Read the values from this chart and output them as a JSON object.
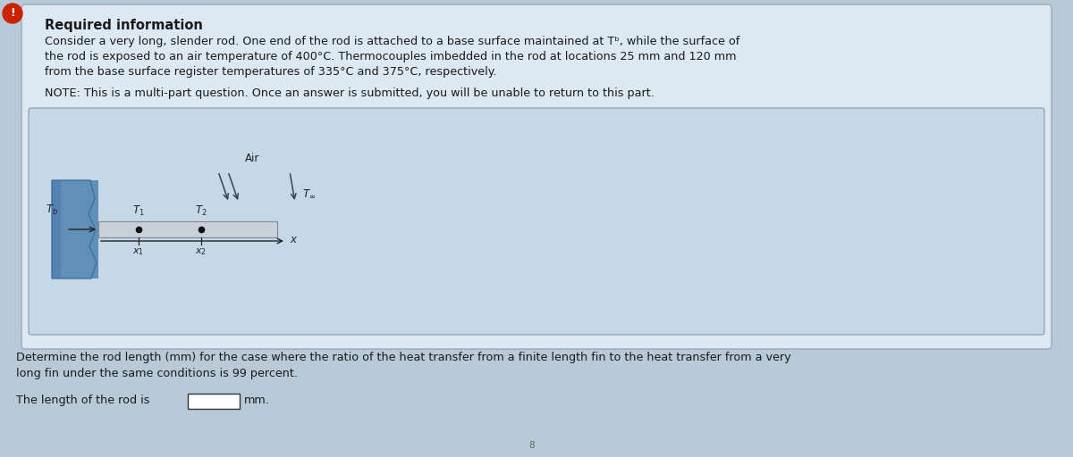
{
  "bg_color": "#b8cad8",
  "panel_facecolor": "#dce8f2",
  "panel_edgecolor": "#9aaabb",
  "diag_bg_color": "#c5d8e8",
  "text_color": "#1a1a1a",
  "title_text": "Required information",
  "body_text_1": "Consider a very long, slender rod. One end of the rod is attached to a base surface maintained at Tᵇ, while the surface of",
  "body_text_2": "the rod is exposed to an air temperature of 400°C. Thermocouples imbedded in the rod at locations 25 mm and 120 mm",
  "body_text_3": "from the base surface register temperatures of 335°C and 375°C, respectively.",
  "note_text": "NOTE: This is a multi-part question. Once an answer is submitted, you will be unable to return to this part.",
  "question_text_1": "Determine the rod length (mm) for the case where the ratio of the heat transfer from a finite length fin to the heat transfer from a very",
  "question_text_2": "long fin under the same conditions is 99 percent.",
  "answer_text": "The length of the rod is",
  "answer_unit": "mm.",
  "rod_color": "#c8d0d8",
  "rod_border_color": "#808898",
  "base_color": "#6090b8",
  "base_dark": "#4070a0",
  "dot_color": "#111111",
  "axis_color": "#222222",
  "label_color": "#222222",
  "air_arrow_color": "#334455",
  "warn_color": "#cc2200",
  "small_label": "8"
}
